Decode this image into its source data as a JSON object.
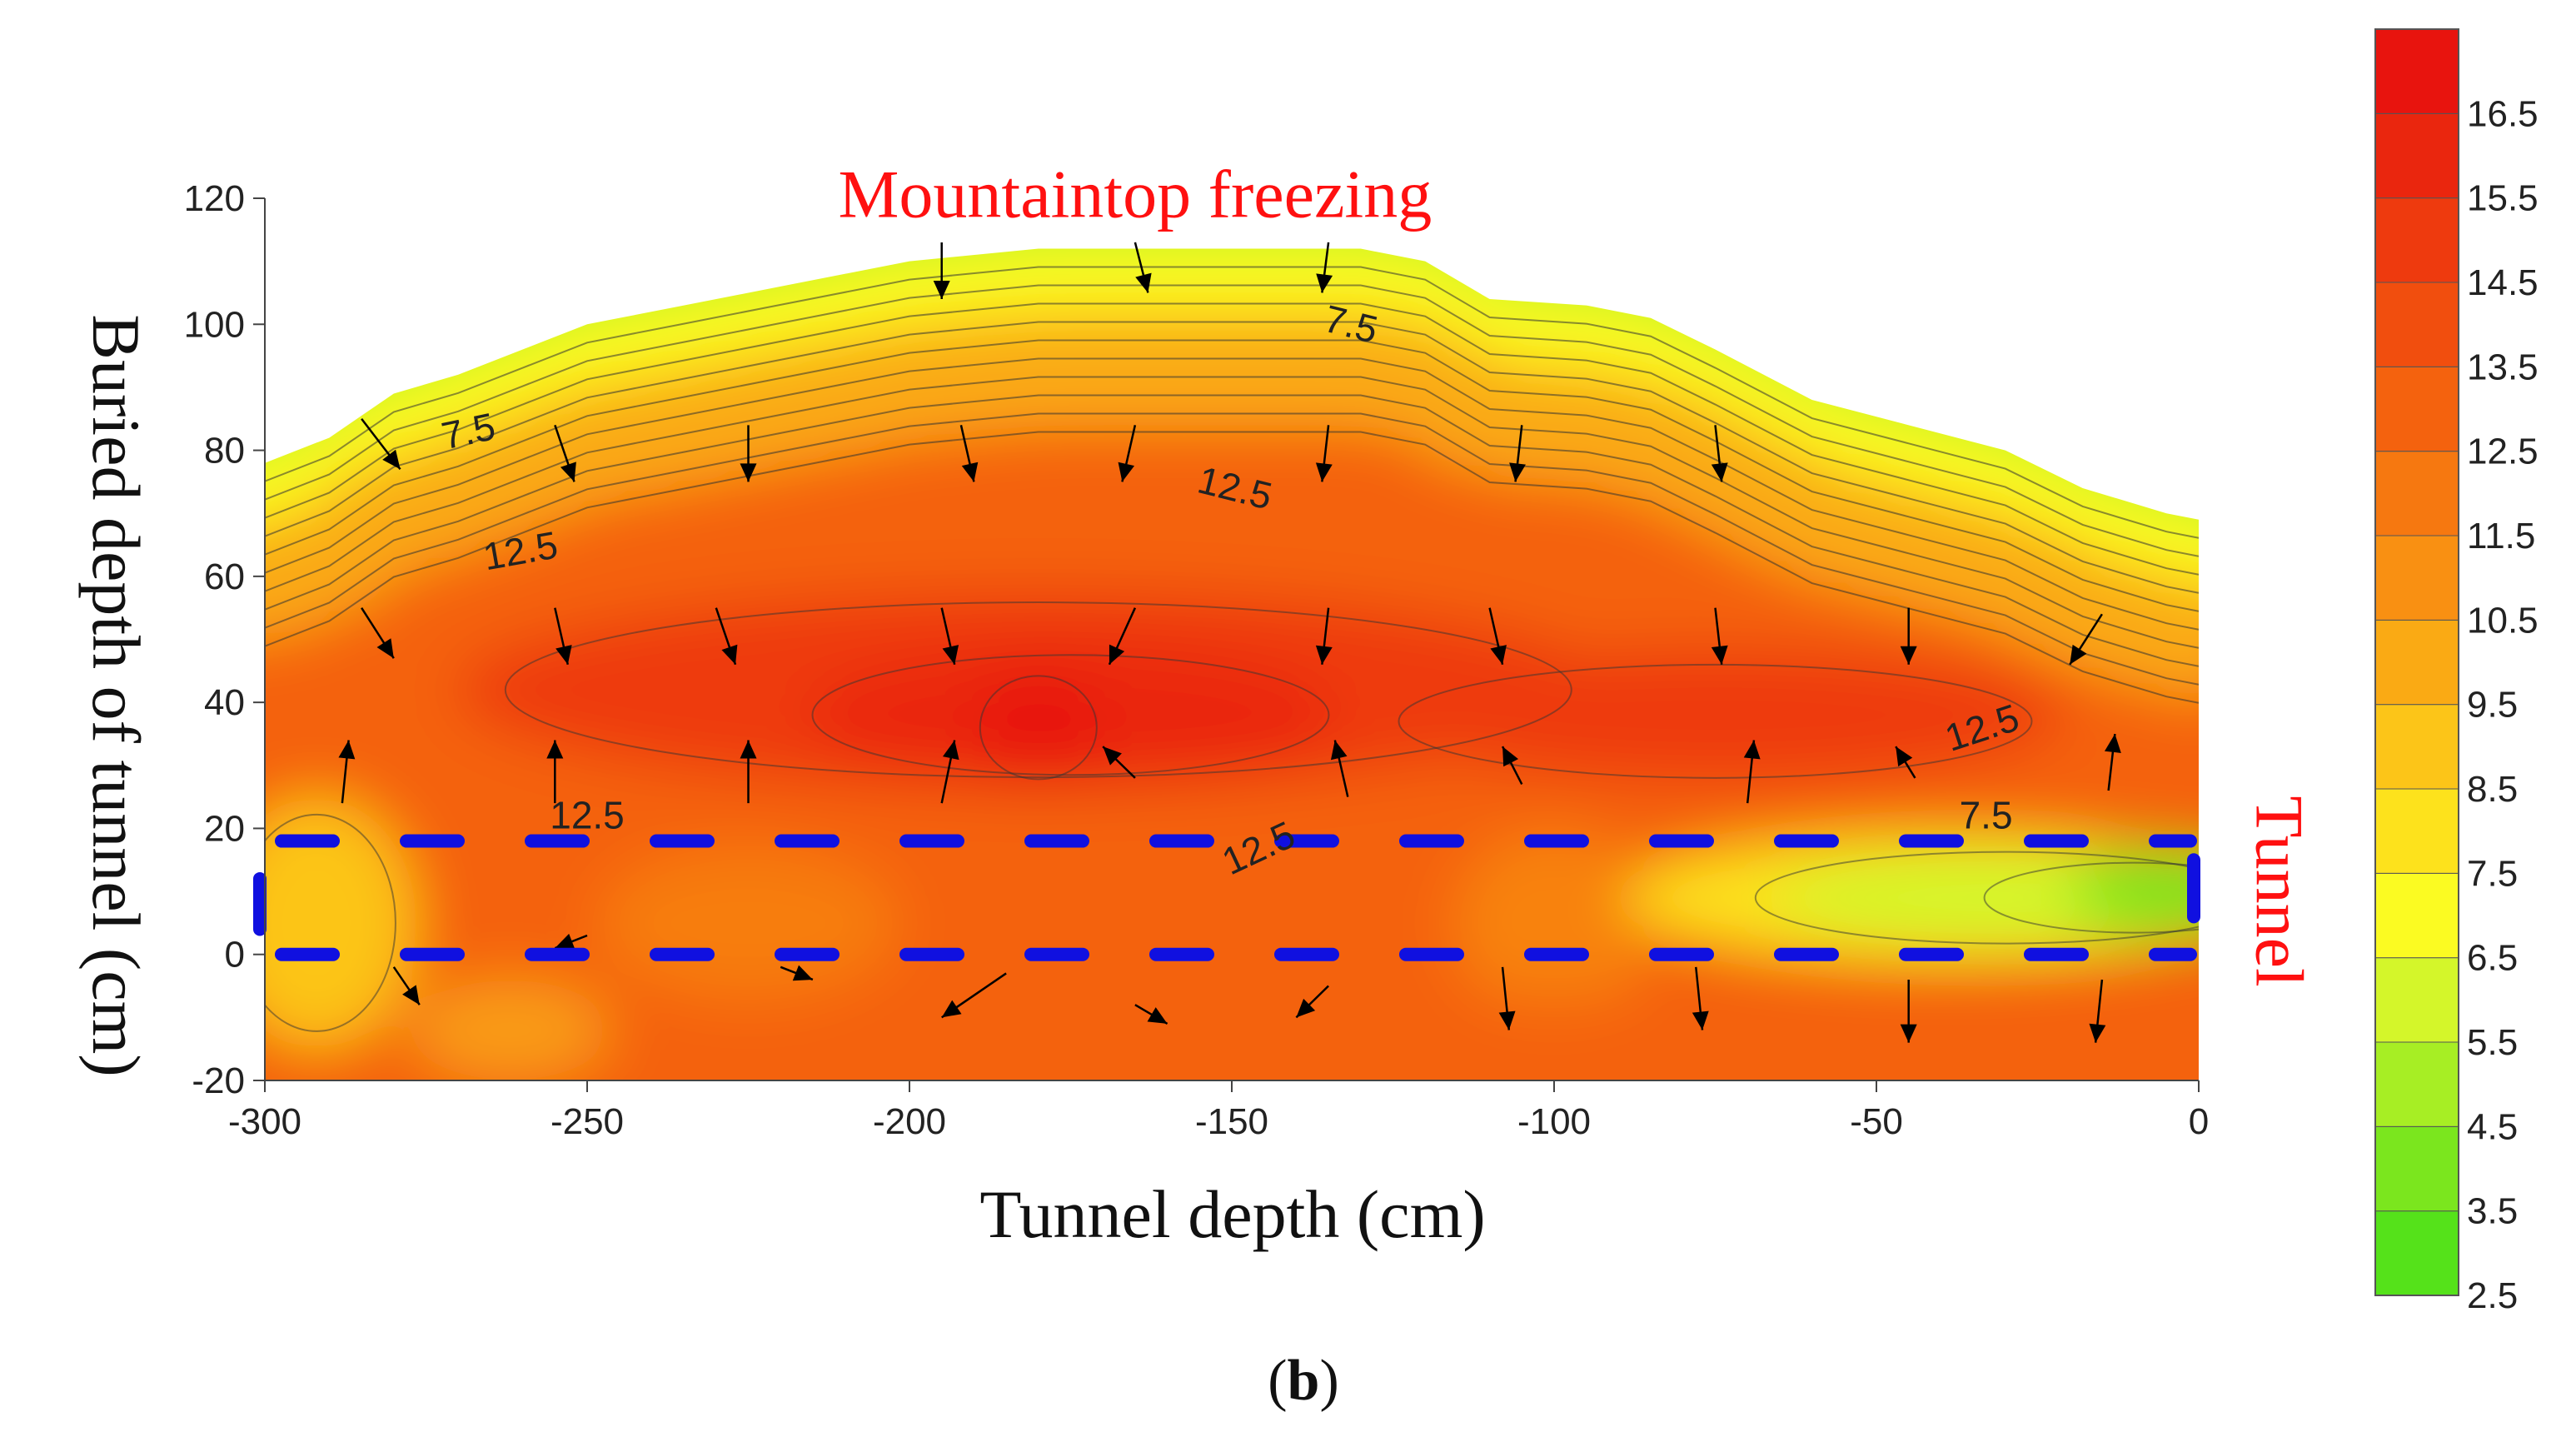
{
  "panel_label": "b",
  "chart_data": {
    "type": "heatmap",
    "title": "",
    "xlabel": "Tunnel depth (cm)",
    "ylabel": "Buried depth of tunnel (cm)",
    "xlim": [
      -300,
      0
    ],
    "ylim": [
      -20,
      120
    ],
    "x_ticks": [
      -300,
      -250,
      -200,
      -150,
      -100,
      -50,
      0
    ],
    "y_ticks": [
      -20,
      0,
      20,
      40,
      60,
      80,
      100,
      120
    ],
    "annotations": [
      {
        "text": "Mountaintop freezing",
        "x": -165,
        "y": 117,
        "color": "#ff1010"
      },
      {
        "text": "Tunnel",
        "x": 9,
        "y": 10,
        "color": "#ff1010",
        "rotated": true
      }
    ],
    "contour_labels": [
      {
        "text": "7.5",
        "x": -268,
        "y": 81
      },
      {
        "text": "12.5",
        "x": -260,
        "y": 62
      },
      {
        "text": "7.5",
        "x": -132,
        "y": 98
      },
      {
        "text": "12.5",
        "x": -150,
        "y": 72
      },
      {
        "text": "12.5",
        "x": -250,
        "y": 20
      },
      {
        "text": "12.5",
        "x": -145,
        "y": 15
      },
      {
        "text": "12.5",
        "x": -33,
        "y": 34
      },
      {
        "text": "7.5",
        "x": -33,
        "y": 20
      }
    ],
    "tunnel_zone": {
      "y_bottom": 0,
      "y_top": 18,
      "x_start": -300,
      "x_end": 0,
      "color": "#1010e0",
      "style": "dashed"
    },
    "colorbar": {
      "ticks": [
        2.5,
        3.5,
        4.5,
        5.5,
        6.5,
        7.5,
        8.5,
        9.5,
        10.5,
        11.5,
        12.5,
        13.5,
        14.5,
        15.5,
        16.5
      ],
      "min": 2.5,
      "max": 17.5,
      "colors": [
        "#55e21a",
        "#7be61e",
        "#a7ee24",
        "#d4f62a",
        "#fbfb22",
        "#fde21c",
        "#fcc518",
        "#faaa14",
        "#f99012",
        "#f67810",
        "#f4620e",
        "#f14e0e",
        "#ee3a0e",
        "#ea260e",
        "#e8140e"
      ]
    },
    "top_boundary": [
      {
        "x": -300,
        "y": 78
      },
      {
        "x": -290,
        "y": 82
      },
      {
        "x": -280,
        "y": 89
      },
      {
        "x": -270,
        "y": 92
      },
      {
        "x": -260,
        "y": 96
      },
      {
        "x": -250,
        "y": 100
      },
      {
        "x": -235,
        "y": 103
      },
      {
        "x": -220,
        "y": 106
      },
      {
        "x": -200,
        "y": 110
      },
      {
        "x": -180,
        "y": 112
      },
      {
        "x": -150,
        "y": 112
      },
      {
        "x": -130,
        "y": 112
      },
      {
        "x": -120,
        "y": 110
      },
      {
        "x": -110,
        "y": 104
      },
      {
        "x": -95,
        "y": 103
      },
      {
        "x": -85,
        "y": 101
      },
      {
        "x": -75,
        "y": 96
      },
      {
        "x": -60,
        "y": 88
      },
      {
        "x": -45,
        "y": 84
      },
      {
        "x": -30,
        "y": 80
      },
      {
        "x": -18,
        "y": 74
      },
      {
        "x": -5,
        "y": 70
      },
      {
        "x": 0,
        "y": 69
      }
    ]
  }
}
